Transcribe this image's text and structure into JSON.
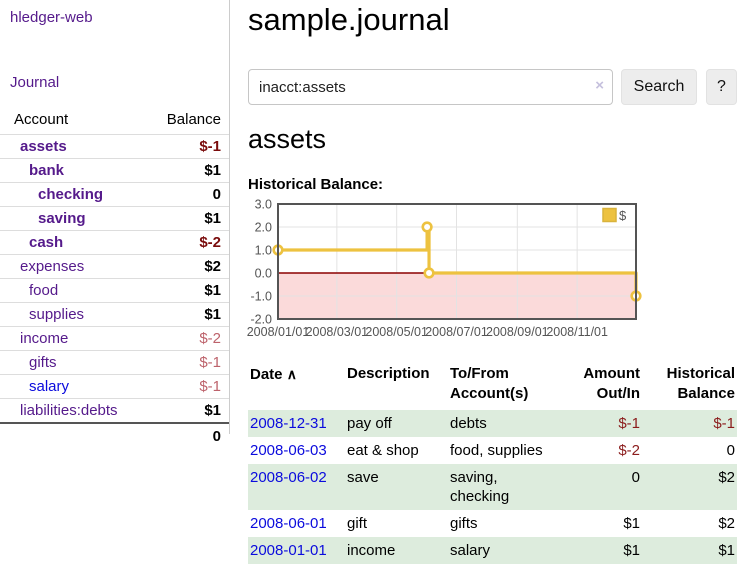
{
  "brand": "hledger-web",
  "nav": {
    "journal": "Journal"
  },
  "sidebar": {
    "account_header": "Account",
    "balance_header": "Balance",
    "accounts": [
      {
        "name": "assets",
        "balance": "$-1"
      },
      {
        "name": "bank",
        "balance": "$1"
      },
      {
        "name": "checking",
        "balance": "0"
      },
      {
        "name": "saving",
        "balance": "$1"
      },
      {
        "name": "cash",
        "balance": "$-2"
      },
      {
        "name": "expenses",
        "balance": "$2"
      },
      {
        "name": "food",
        "balance": "$1"
      },
      {
        "name": "supplies",
        "balance": "$1"
      },
      {
        "name": "income",
        "balance": "$-2"
      },
      {
        "name": "gifts",
        "balance": "$-1"
      },
      {
        "name": "salary",
        "balance": "$-1"
      },
      {
        "name": "liabilities:debts",
        "balance": "$1"
      }
    ],
    "total": "0"
  },
  "main": {
    "title": "sample.journal",
    "search": {
      "value": "inacct:assets",
      "clear_icon": "×",
      "search_button": "Search",
      "help_button": "?"
    },
    "account_heading": "assets",
    "section_label": "Historical Balance:"
  },
  "chart_data": {
    "type": "line",
    "step": true,
    "title": "Historical Balance",
    "x": [
      "2008-01-01",
      "2008-06-01",
      "2008-06-03",
      "2008-12-31"
    ],
    "series": [
      {
        "name": "$",
        "values": [
          1,
          2,
          0,
          -1
        ]
      }
    ],
    "x_ticks": [
      "2008/01/01",
      "2008/03/01",
      "2008/05/01",
      "2008/07/01",
      "2008/09/01",
      "2008/11/01"
    ],
    "y_ticks": [
      "3.0",
      "2.0",
      "1.0",
      "0.0",
      "-1.0",
      "-2.0"
    ],
    "xlim": [
      "2008-01-01",
      "2008-12-31"
    ],
    "ylim": [
      -2,
      3
    ],
    "grid": true,
    "legend_position": "top-right",
    "legend": [
      {
        "label": "$",
        "color": "#edc240"
      }
    ],
    "line_color": "#edc240",
    "negative_region_color": "#fbdada",
    "zero_line_color": "#8b0000",
    "grid_color": "#e3e3e3",
    "border_color": "#545454"
  },
  "register": {
    "headers": {
      "date": "Date",
      "sort_icon": "∧",
      "description": "Description",
      "accounts": "To/From Account(s)",
      "amount": "Amount Out/In",
      "balance": "Historical Balance"
    },
    "rows": [
      {
        "date": "2008-12-31",
        "description": "pay off",
        "accounts": "debts",
        "amount": "$-1",
        "balance": "$-1"
      },
      {
        "date": "2008-06-03",
        "description": "eat & shop",
        "accounts": "food, supplies",
        "amount": "$-2",
        "balance": "0"
      },
      {
        "date": "2008-06-02",
        "description": "save",
        "accounts": "saving, checking",
        "amount": "0",
        "balance": "$2"
      },
      {
        "date": "2008-06-01",
        "description": "gift",
        "accounts": "gifts",
        "amount": "$1",
        "balance": "$2"
      },
      {
        "date": "2008-01-01",
        "description": "income",
        "accounts": "salary",
        "amount": "$1",
        "balance": "$1"
      }
    ]
  }
}
